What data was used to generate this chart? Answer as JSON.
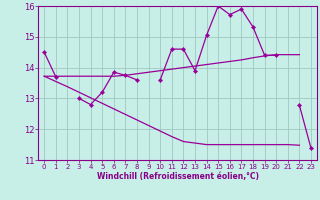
{
  "x": [
    0,
    1,
    2,
    3,
    4,
    5,
    6,
    7,
    8,
    9,
    10,
    11,
    12,
    13,
    14,
    15,
    16,
    17,
    18,
    19,
    20,
    21,
    22,
    23
  ],
  "line1": [
    14.5,
    13.7,
    null,
    13.0,
    12.8,
    13.2,
    13.85,
    13.75,
    13.6,
    null,
    13.6,
    14.6,
    14.6,
    13.9,
    15.05,
    16.0,
    15.72,
    15.9,
    15.32,
    14.4,
    14.4,
    null,
    12.78,
    11.38
  ],
  "line2": [
    13.72,
    13.72,
    13.72,
    13.72,
    13.72,
    13.72,
    13.72,
    13.75,
    13.8,
    13.85,
    13.9,
    13.95,
    14.0,
    14.05,
    14.1,
    14.15,
    14.2,
    14.25,
    14.32,
    14.38,
    14.42,
    14.42,
    14.42,
    null
  ],
  "line3": [
    13.72,
    13.55,
    13.38,
    13.2,
    13.02,
    12.84,
    12.66,
    12.48,
    12.3,
    12.12,
    11.94,
    11.76,
    11.6,
    11.55,
    11.5,
    11.5,
    11.5,
    11.5,
    11.5,
    11.5,
    11.5,
    11.5,
    11.48,
    null
  ],
  "bg_color": "#c8eee8",
  "line_color": "#990099",
  "grid_color": "#a0c8c0",
  "xlabel": "Windchill (Refroidissement éolien,°C)",
  "ylim": [
    11,
    16
  ],
  "xlim": [
    -0.5,
    23.5
  ],
  "yticks": [
    11,
    12,
    13,
    14,
    15,
    16
  ],
  "xticks": [
    0,
    1,
    2,
    3,
    4,
    5,
    6,
    7,
    8,
    9,
    10,
    11,
    12,
    13,
    14,
    15,
    16,
    17,
    18,
    19,
    20,
    21,
    22,
    23
  ],
  "font_color": "#880088"
}
